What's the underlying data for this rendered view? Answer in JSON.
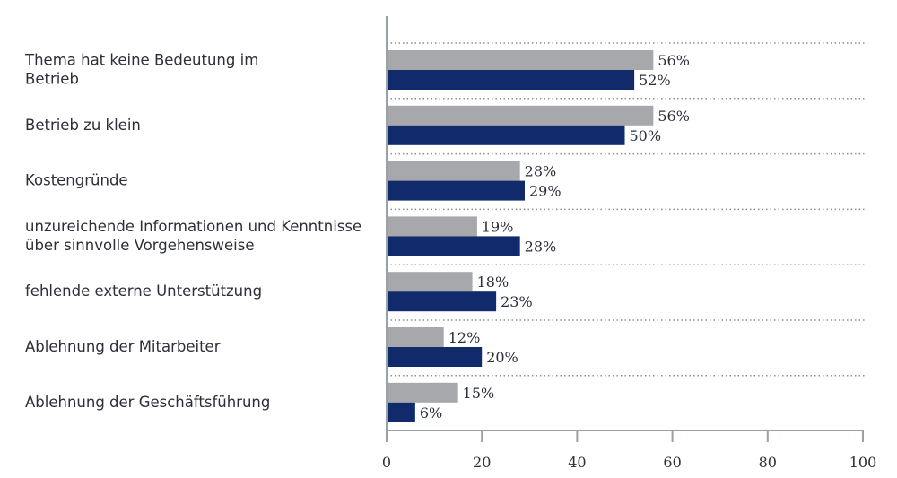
{
  "chart_data": {
    "type": "bar",
    "orientation": "horizontal",
    "categories": [
      [
        "Thema hat keine Bedeutung im",
        "Betrieb"
      ],
      [
        "Betrieb zu klein"
      ],
      [
        "Kostengründe"
      ],
      [
        "unzureichende Informationen und Kenntnisse",
        "über sinnvolle Vorgehensweise"
      ],
      [
        "fehlende externe Unterstützung"
      ],
      [
        "Ablehnung der Mitarbeiter"
      ],
      [
        "Ablehnung der Geschäftsführung"
      ]
    ],
    "series": [
      {
        "color": "#a6a8ac",
        "values": [
          56,
          56,
          28,
          19,
          18,
          12,
          15
        ]
      },
      {
        "color": "#102a6b",
        "values": [
          52,
          50,
          29,
          28,
          23,
          20,
          6
        ]
      }
    ],
    "value_suffix": "%",
    "xlim": [
      0,
      100
    ],
    "xticks": [
      "0",
      "20",
      "40",
      "60",
      "80",
      "100"
    ],
    "grid": false,
    "separators": "dotted",
    "title": "",
    "xlabel": "",
    "ylabel": ""
  }
}
